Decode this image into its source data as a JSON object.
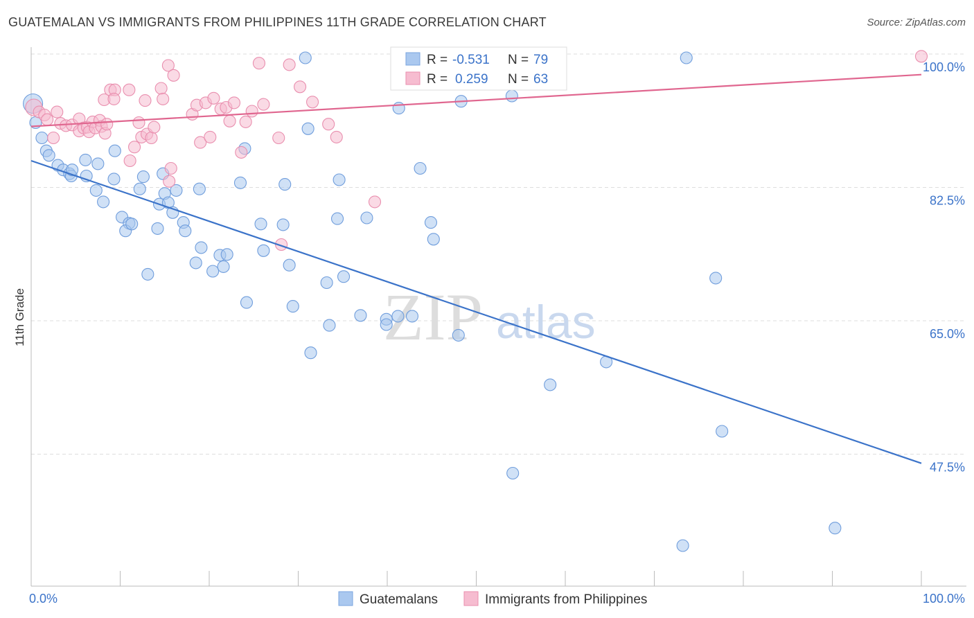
{
  "title": "GUATEMALAN VS IMMIGRANTS FROM PHILIPPINES 11TH GRADE CORRELATION CHART",
  "source": "Source: ZipAtlas.com",
  "watermark": {
    "zip": "ZIP",
    "atlas": "atlas"
  },
  "colors": {
    "blue": "#3b73c9",
    "blue_fill": "#aac8ef",
    "pink": "#e0668f",
    "pink_fill": "#f6bcd0",
    "grid": "#dddddd"
  },
  "legend": {
    "rows": [
      {
        "r_label": "R =",
        "r_value": "-0.531",
        "n_label": "N =",
        "n_value": "79"
      },
      {
        "r_label": "R =",
        "r_value": "0.259",
        "n_label": "N =",
        "n_value": "63"
      }
    ]
  },
  "chart_data": {
    "type": "scatter",
    "title": "GUATEMALAN VS IMMIGRANTS FROM PHILIPPINES 11TH GRADE CORRELATION CHART",
    "xlabel": "",
    "ylabel": "11th Grade",
    "xlim": [
      0,
      100
    ],
    "ylim": [
      29,
      101
    ],
    "x_tick_labels": [
      "0.0%",
      "100.0%"
    ],
    "y_ticks": [
      47.5,
      65.0,
      82.5,
      100.0
    ],
    "y_tick_labels": [
      "47.5%",
      "65.0%",
      "82.5%",
      "100.0%"
    ],
    "grid": true,
    "legend_position": "top-center",
    "series": [
      {
        "name": "Guatemalans",
        "color": "#3b73c9",
        "trend": [
          [
            0,
            86.0
          ],
          [
            100,
            46.3
          ]
        ],
        "points": [
          [
            0.2,
            93.5
          ],
          [
            0.5,
            91.0
          ],
          [
            1.2,
            89.0
          ],
          [
            1.7,
            87.3
          ],
          [
            2.0,
            86.7
          ],
          [
            3.0,
            85.4
          ],
          [
            3.6,
            84.8
          ],
          [
            4.3,
            84.3
          ],
          [
            4.5,
            84.0
          ],
          [
            4.6,
            84.8
          ],
          [
            6.2,
            84.0
          ],
          [
            6.1,
            86.1
          ],
          [
            7.3,
            82.1
          ],
          [
            8.1,
            80.6
          ],
          [
            7.5,
            85.6
          ],
          [
            9.4,
            87.3
          ],
          [
            9.3,
            83.6
          ],
          [
            10.2,
            78.6
          ],
          [
            11.0,
            77.8
          ],
          [
            10.6,
            76.8
          ],
          [
            11.3,
            77.7
          ],
          [
            13.1,
            71.1
          ],
          [
            14.2,
            77.1
          ],
          [
            12.2,
            82.3
          ],
          [
            12.6,
            83.9
          ],
          [
            14.4,
            80.3
          ],
          [
            15.0,
            81.7
          ],
          [
            15.4,
            80.5
          ],
          [
            14.8,
            84.3
          ],
          [
            15.9,
            79.2
          ],
          [
            16.3,
            82.1
          ],
          [
            17.1,
            77.9
          ],
          [
            17.3,
            76.8
          ],
          [
            18.9,
            82.3
          ],
          [
            19.1,
            74.6
          ],
          [
            18.5,
            72.6
          ],
          [
            20.4,
            71.5
          ],
          [
            21.2,
            73.6
          ],
          [
            21.6,
            72.1
          ],
          [
            22.0,
            73.7
          ],
          [
            23.5,
            83.1
          ],
          [
            24.0,
            87.6
          ],
          [
            24.2,
            67.4
          ],
          [
            26.1,
            74.2
          ],
          [
            25.8,
            77.7
          ],
          [
            28.3,
            77.6
          ],
          [
            28.5,
            82.9
          ],
          [
            29.0,
            72.3
          ],
          [
            29.4,
            66.9
          ],
          [
            31.1,
            90.2
          ],
          [
            31.4,
            60.8
          ],
          [
            30.8,
            99.5
          ],
          [
            33.2,
            70.0
          ],
          [
            33.5,
            64.4
          ],
          [
            34.4,
            78.4
          ],
          [
            34.6,
            83.5
          ],
          [
            35.1,
            70.8
          ],
          [
            37.0,
            65.7
          ],
          [
            37.7,
            78.5
          ],
          [
            39.9,
            65.2
          ],
          [
            39.9,
            64.5
          ],
          [
            41.2,
            65.6
          ],
          [
            41.3,
            92.9
          ],
          [
            42.8,
            65.6
          ],
          [
            43.7,
            85.0
          ],
          [
            44.9,
            77.9
          ],
          [
            45.2,
            75.7
          ],
          [
            47.2,
            97.2
          ],
          [
            48.0,
            63.1
          ],
          [
            48.3,
            93.8
          ],
          [
            54.0,
            94.5
          ],
          [
            54.1,
            45.0
          ],
          [
            58.3,
            56.6
          ],
          [
            64.6,
            59.6
          ],
          [
            73.6,
            99.5
          ],
          [
            73.2,
            35.5
          ],
          [
            77.6,
            50.5
          ],
          [
            76.9,
            70.6
          ],
          [
            90.3,
            37.8
          ]
        ]
      },
      {
        "name": "Immigrants from Philippines",
        "color": "#e0668f",
        "trend": [
          [
            0,
            90.5
          ],
          [
            100,
            97.3
          ]
        ],
        "points": [
          [
            0.3,
            93.0
          ],
          [
            0.9,
            92.4
          ],
          [
            1.5,
            92.0
          ],
          [
            1.8,
            91.4
          ],
          [
            2.5,
            89.0
          ],
          [
            2.9,
            92.4
          ],
          [
            3.3,
            90.9
          ],
          [
            3.9,
            90.6
          ],
          [
            4.6,
            90.7
          ],
          [
            5.4,
            91.5
          ],
          [
            5.4,
            89.9
          ],
          [
            5.9,
            90.3
          ],
          [
            6.3,
            90.4
          ],
          [
            6.5,
            89.8
          ],
          [
            6.9,
            91.1
          ],
          [
            7.2,
            90.3
          ],
          [
            7.7,
            91.3
          ],
          [
            7.9,
            90.5
          ],
          [
            8.3,
            89.6
          ],
          [
            8.5,
            90.8
          ],
          [
            8.2,
            94.0
          ],
          [
            8.9,
            95.3
          ],
          [
            9.4,
            95.3
          ],
          [
            9.3,
            94.1
          ],
          [
            11.0,
            95.3
          ],
          [
            11.1,
            86.0
          ],
          [
            11.6,
            87.8
          ],
          [
            12.1,
            91.0
          ],
          [
            12.4,
            89.1
          ],
          [
            12.8,
            93.9
          ],
          [
            13.0,
            89.5
          ],
          [
            13.5,
            89.0
          ],
          [
            13.8,
            90.4
          ],
          [
            14.6,
            95.5
          ],
          [
            14.8,
            94.1
          ],
          [
            15.4,
            98.5
          ],
          [
            16.0,
            97.2
          ],
          [
            15.5,
            83.3
          ],
          [
            15.7,
            85.0
          ],
          [
            18.1,
            92.1
          ],
          [
            18.6,
            93.3
          ],
          [
            19.0,
            88.4
          ],
          [
            19.6,
            93.6
          ],
          [
            20.1,
            89.1
          ],
          [
            20.5,
            94.2
          ],
          [
            21.3,
            92.8
          ],
          [
            21.9,
            93.0
          ],
          [
            22.3,
            91.2
          ],
          [
            22.8,
            93.6
          ],
          [
            23.6,
            87.1
          ],
          [
            24.1,
            91.1
          ],
          [
            24.8,
            92.5
          ],
          [
            25.6,
            98.8
          ],
          [
            26.1,
            93.4
          ],
          [
            27.8,
            89.0
          ],
          [
            28.1,
            75.0
          ],
          [
            29.0,
            98.6
          ],
          [
            30.2,
            95.7
          ],
          [
            31.6,
            93.7
          ],
          [
            33.4,
            90.8
          ],
          [
            34.3,
            89.1
          ],
          [
            38.6,
            80.6
          ],
          [
            100.0,
            99.7
          ]
        ]
      }
    ]
  },
  "bottom_legend": [
    "Guatemalans",
    "Immigrants from Philippines"
  ]
}
